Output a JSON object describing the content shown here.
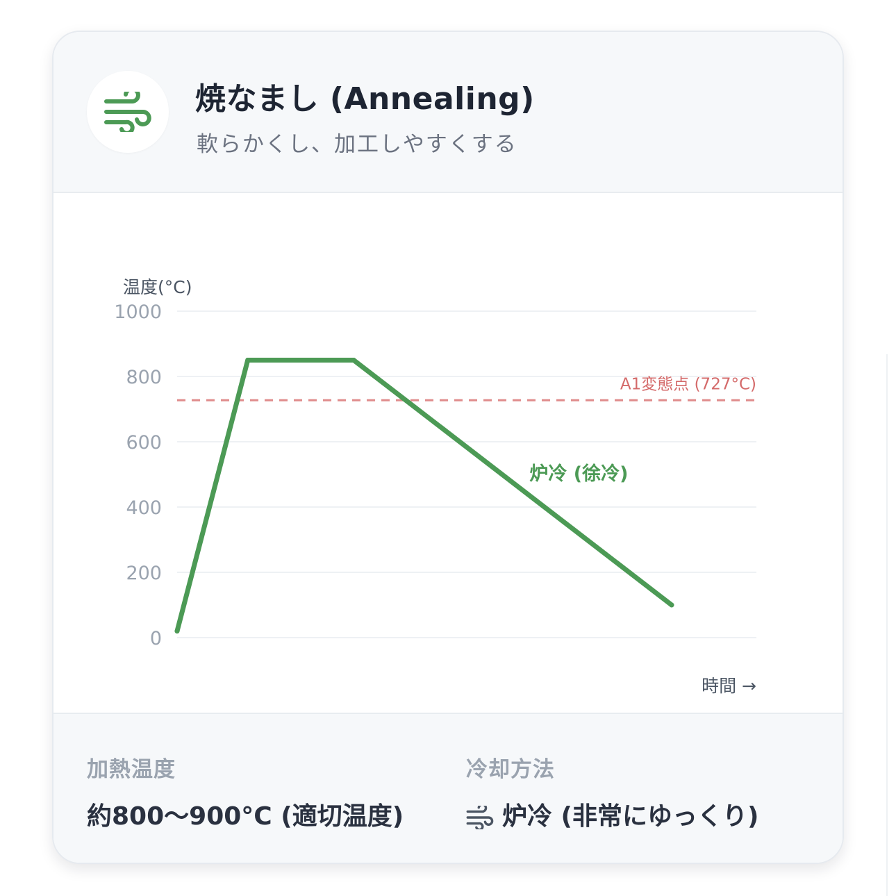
{
  "header": {
    "icon": "wind-icon",
    "title": "焼なまし (Annealing)",
    "subtitle": "軟らかくし、加工しやすくする"
  },
  "chart_data": {
    "type": "line",
    "ylabel": "温度(°C)",
    "xlabel": "時間 →",
    "ylim": [
      0,
      1000
    ],
    "yticks": [
      0,
      200,
      400,
      600,
      800,
      1000
    ],
    "grid": true,
    "series": [
      {
        "name": "",
        "color": "#4c9a55",
        "points": [
          {
            "t": 0,
            "y": 20
          },
          {
            "t": 1,
            "y": 850
          },
          {
            "t": 2.5,
            "y": 850
          },
          {
            "t": 7,
            "y": 100
          }
        ]
      }
    ],
    "reference_lines": [
      {
        "y": 727,
        "label": "A1変態点 (727°C)",
        "color": "#e08b8b",
        "style": "dashed"
      }
    ],
    "annotations": [
      {
        "text": "炉冷 (徐冷)",
        "color": "#4c9a55"
      }
    ]
  },
  "footer": {
    "heating": {
      "label": "加熱温度",
      "value": "約800〜900°C (適切温度)"
    },
    "cooling": {
      "label": "冷却方法",
      "icon": "wind-icon",
      "value": "炉冷 (非常にゆっくり)"
    }
  }
}
